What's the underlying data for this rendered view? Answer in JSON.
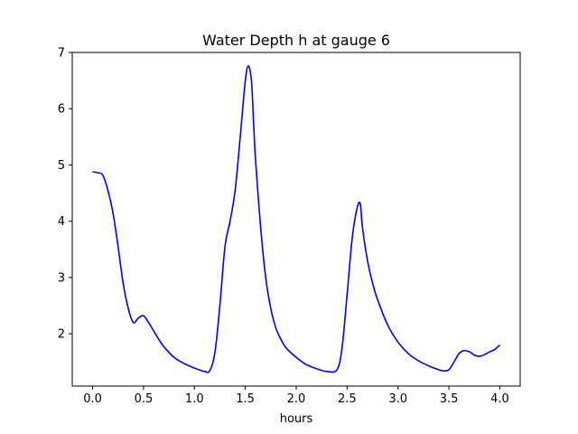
{
  "chart_data": {
    "type": "line",
    "title": "Water Depth h at gauge 6",
    "xlabel": "hours",
    "ylabel": "",
    "xlim": [
      -0.2,
      4.2
    ],
    "ylim": [
      1.07,
      7.0
    ],
    "xticks": [
      0.0,
      0.5,
      1.0,
      1.5,
      2.0,
      2.5,
      3.0,
      3.5,
      4.0
    ],
    "xtick_labels": [
      "0.0",
      "0.5",
      "1.0",
      "1.5",
      "2.0",
      "2.5",
      "3.0",
      "3.5",
      "4.0"
    ],
    "yticks": [
      2,
      3,
      4,
      5,
      6,
      7
    ],
    "ytick_labels": [
      "2",
      "3",
      "4",
      "5",
      "6",
      "7"
    ],
    "grid": false,
    "legend": "none",
    "series": [
      {
        "color": "#0000ff",
        "x": [
          0.0,
          0.05,
          0.1,
          0.15,
          0.2,
          0.25,
          0.3,
          0.35,
          0.4,
          0.45,
          0.5,
          0.55,
          0.6,
          0.65,
          0.7,
          0.8,
          0.9,
          1.0,
          1.1,
          1.15,
          1.2,
          1.25,
          1.3,
          1.35,
          1.4,
          1.45,
          1.5,
          1.53,
          1.56,
          1.58,
          1.6,
          1.65,
          1.7,
          1.75,
          1.8,
          1.85,
          1.9,
          2.0,
          2.1,
          2.2,
          2.3,
          2.4,
          2.45,
          2.5,
          2.55,
          2.6,
          2.63,
          2.65,
          2.7,
          2.75,
          2.8,
          2.9,
          3.0,
          3.1,
          3.2,
          3.3,
          3.4,
          3.45,
          3.5,
          3.55,
          3.6,
          3.65,
          3.7,
          3.75,
          3.8,
          3.85,
          3.9,
          3.95,
          4.0
        ],
        "values": [
          4.88,
          4.86,
          4.82,
          4.55,
          4.15,
          3.55,
          2.9,
          2.45,
          2.2,
          2.28,
          2.32,
          2.2,
          2.05,
          1.9,
          1.77,
          1.58,
          1.47,
          1.39,
          1.33,
          1.34,
          1.65,
          2.5,
          3.55,
          4.0,
          4.55,
          5.5,
          6.5,
          6.76,
          6.5,
          5.8,
          5.1,
          3.9,
          3.0,
          2.45,
          2.1,
          1.9,
          1.75,
          1.58,
          1.45,
          1.38,
          1.33,
          1.36,
          1.75,
          2.7,
          3.7,
          4.25,
          4.3,
          3.9,
          3.3,
          2.9,
          2.6,
          2.15,
          1.85,
          1.65,
          1.52,
          1.43,
          1.36,
          1.34,
          1.36,
          1.5,
          1.65,
          1.7,
          1.68,
          1.62,
          1.6,
          1.63,
          1.68,
          1.72,
          1.8
        ]
      }
    ]
  }
}
